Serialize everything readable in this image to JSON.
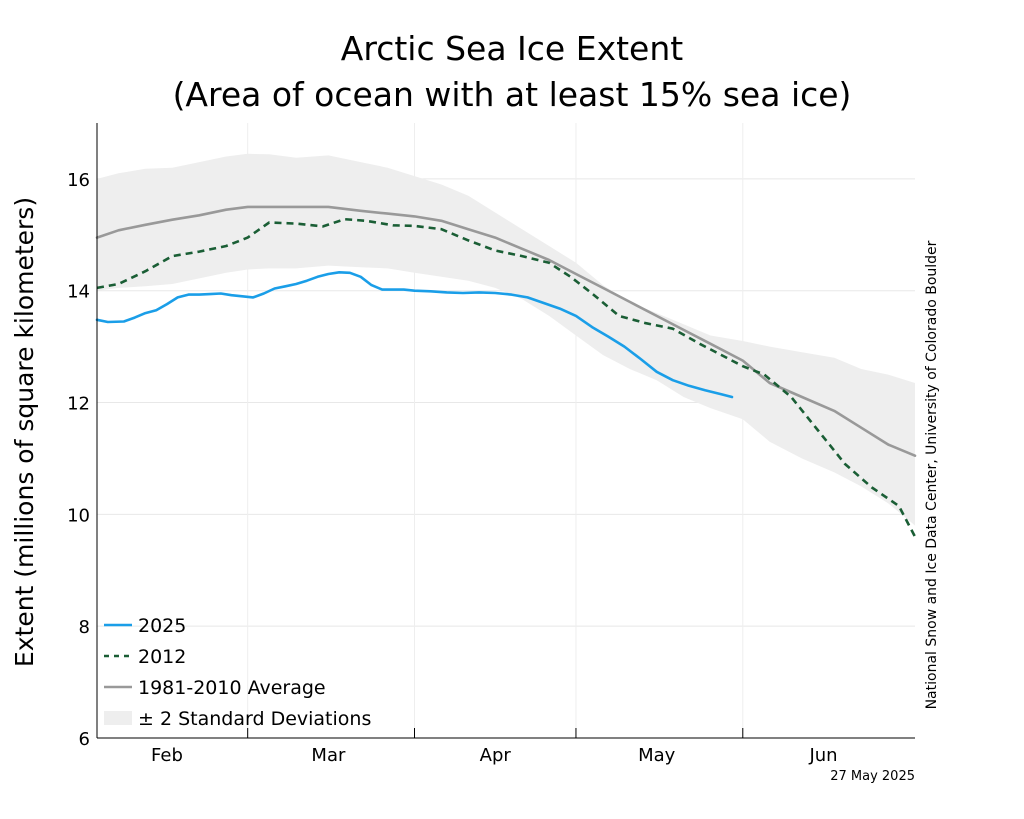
{
  "chart_data": {
    "type": "line",
    "title_lines": [
      "Arctic Sea Ice Extent",
      "(Area of ocean with at least 15% sea ice)"
    ],
    "ylabel": "Extent (millions of square kilometers)",
    "xlabel": "",
    "ylim": [
      6,
      17
    ],
    "xlim": [
      21,
      173
    ],
    "yticks": [
      6,
      8,
      10,
      12,
      14,
      16
    ],
    "x_months": [
      {
        "label": "Feb",
        "center_day": 34
      },
      {
        "label": "Mar",
        "center_day": 64
      },
      {
        "label": "Apr",
        "center_day": 95
      },
      {
        "label": "May",
        "center_day": 125
      },
      {
        "label": "Jun",
        "center_day": 156
      }
    ],
    "x_month_boundaries": [
      49,
      80,
      110,
      141
    ],
    "grid": true,
    "legend_position": "lower-left",
    "band": {
      "name": "± 2 Standard Deviations",
      "color": "#eeeeee",
      "x": [
        21,
        25,
        30,
        35,
        40,
        45,
        49,
        53,
        58,
        64,
        70,
        75,
        80,
        85,
        90,
        95,
        100,
        105,
        110,
        115,
        120,
        125,
        130,
        135,
        141,
        146,
        152,
        158,
        163,
        168,
        173
      ],
      "upper": [
        16.0,
        16.1,
        16.18,
        16.2,
        16.3,
        16.4,
        16.45,
        16.44,
        16.38,
        16.42,
        16.3,
        16.2,
        16.05,
        15.9,
        15.7,
        15.4,
        15.1,
        14.8,
        14.5,
        14.1,
        13.8,
        13.6,
        13.4,
        13.2,
        13.1,
        13.0,
        12.9,
        12.8,
        12.6,
        12.5,
        12.35
      ],
      "lower": [
        14.0,
        14.05,
        14.08,
        14.12,
        14.22,
        14.32,
        14.38,
        14.4,
        14.4,
        14.45,
        14.42,
        14.4,
        14.32,
        14.25,
        14.18,
        14.05,
        13.85,
        13.55,
        13.2,
        12.85,
        12.6,
        12.4,
        12.1,
        11.9,
        11.7,
        11.3,
        11.0,
        10.75,
        10.5,
        10.2,
        9.8
      ]
    },
    "series": [
      {
        "name": "2025",
        "color": "#1a9ee8",
        "style": "solid",
        "x": [
          21,
          23,
          26,
          28,
          30,
          32,
          34,
          36,
          38,
          40,
          42,
          44,
          46,
          48,
          50,
          52,
          54,
          56,
          58,
          60,
          62,
          64,
          66,
          68,
          70,
          72,
          74,
          76,
          78,
          80,
          83,
          86,
          89,
          92,
          95,
          98,
          101,
          104,
          107,
          110,
          113,
          116,
          119,
          122,
          125,
          128,
          131,
          134,
          137,
          139
        ],
        "values": [
          13.48,
          13.44,
          13.45,
          13.52,
          13.6,
          13.65,
          13.76,
          13.88,
          13.93,
          13.93,
          13.94,
          13.95,
          13.92,
          13.9,
          13.88,
          13.95,
          14.04,
          14.08,
          14.12,
          14.18,
          14.25,
          14.3,
          14.33,
          14.32,
          14.25,
          14.1,
          14.02,
          14.02,
          14.02,
          14.0,
          13.99,
          13.97,
          13.96,
          13.97,
          13.96,
          13.93,
          13.88,
          13.78,
          13.68,
          13.55,
          13.35,
          13.18,
          13.0,
          12.78,
          12.55,
          12.4,
          12.3,
          12.22,
          12.15,
          12.1
        ]
      },
      {
        "name": "2012",
        "color": "#1a5e35",
        "style": "dashed",
        "x": [
          21,
          25,
          30,
          35,
          40,
          45,
          49,
          53,
          58,
          63,
          67,
          71,
          76,
          80,
          85,
          90,
          95,
          100,
          105,
          109,
          113,
          118,
          123,
          128,
          133,
          137,
          141,
          145,
          150,
          155,
          160,
          165,
          170,
          173
        ],
        "values": [
          14.05,
          14.12,
          14.35,
          14.62,
          14.7,
          14.8,
          14.95,
          15.22,
          15.2,
          15.15,
          15.28,
          15.25,
          15.17,
          15.16,
          15.1,
          14.9,
          14.72,
          14.62,
          14.5,
          14.25,
          13.95,
          13.55,
          13.42,
          13.32,
          13.05,
          12.85,
          12.65,
          12.5,
          12.1,
          11.5,
          10.9,
          10.48,
          10.15,
          9.6
        ]
      },
      {
        "name": "1981-2010 Average",
        "color": "#999999",
        "style": "solid",
        "x": [
          21,
          25,
          30,
          35,
          40,
          45,
          49,
          53,
          58,
          64,
          70,
          75,
          80,
          85,
          90,
          95,
          100,
          105,
          110,
          115,
          120,
          125,
          130,
          135,
          141,
          146,
          152,
          158,
          163,
          168,
          173
        ],
        "values": [
          14.95,
          15.08,
          15.18,
          15.27,
          15.35,
          15.45,
          15.5,
          15.5,
          15.5,
          15.5,
          15.43,
          15.38,
          15.33,
          15.25,
          15.1,
          14.95,
          14.75,
          14.55,
          14.3,
          14.05,
          13.8,
          13.55,
          13.3,
          13.05,
          12.75,
          12.35,
          12.1,
          11.85,
          11.55,
          11.25,
          11.05
        ]
      }
    ]
  },
  "legend": [
    {
      "label": "2025",
      "kind": "line",
      "color": "#1a9ee8",
      "style": "solid"
    },
    {
      "label": "2012",
      "kind": "line",
      "color": "#1a5e35",
      "style": "dashed"
    },
    {
      "label": "1981-2010 Average",
      "kind": "line",
      "color": "#999999",
      "style": "solid"
    },
    {
      "label": "± 2 Standard Deviations",
      "kind": "band",
      "color": "#eeeeee"
    }
  ],
  "credit": "National Snow and Ice Data Center, University of Colorado Boulder",
  "date_stamp": "27 May 2025"
}
